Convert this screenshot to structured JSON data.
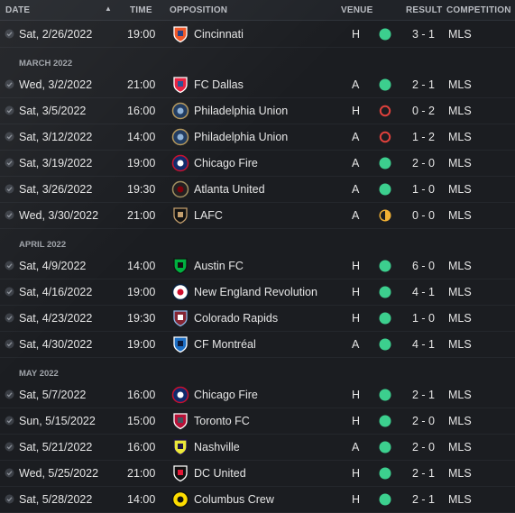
{
  "columns": {
    "date": "DATE",
    "time": "TIME",
    "opposition": "OPPOSITION",
    "venue": "VENUE",
    "result": "RESULT",
    "competition": "COMPETITION",
    "sort_indicator": "▲"
  },
  "colors": {
    "win": "#3ccf8e",
    "loss": "#e0413c",
    "draw": "#f2b134"
  },
  "rows": [
    {
      "type": "match",
      "date": "Sat, 2/26/2022",
      "time": "19:00",
      "opponent": "Cincinnati",
      "crest_icon": "cincinnati-crest-icon",
      "venue": "H",
      "outcome": "win",
      "result": "3 - 1",
      "competition": "MLS"
    },
    {
      "type": "section",
      "label": "MARCH 2022"
    },
    {
      "type": "match",
      "date": "Wed, 3/2/2022",
      "time": "21:00",
      "opponent": "FC Dallas",
      "crest_icon": "fc-dallas-crest-icon",
      "venue": "A",
      "outcome": "win",
      "result": "2 - 1",
      "competition": "MLS"
    },
    {
      "type": "match",
      "date": "Sat, 3/5/2022",
      "time": "16:00",
      "opponent": "Philadelphia Union",
      "crest_icon": "philadelphia-union-crest-icon",
      "venue": "H",
      "outcome": "loss",
      "result": "0 - 2",
      "competition": "MLS"
    },
    {
      "type": "match",
      "date": "Sat, 3/12/2022",
      "time": "14:00",
      "opponent": "Philadelphia Union",
      "crest_icon": "philadelphia-union-crest-icon",
      "venue": "A",
      "outcome": "loss",
      "result": "1 - 2",
      "competition": "MLS"
    },
    {
      "type": "match",
      "date": "Sat, 3/19/2022",
      "time": "19:00",
      "opponent": "Chicago Fire",
      "crest_icon": "chicago-fire-crest-icon",
      "venue": "A",
      "outcome": "win",
      "result": "2 - 0",
      "competition": "MLS"
    },
    {
      "type": "match",
      "date": "Sat, 3/26/2022",
      "time": "19:30",
      "opponent": "Atlanta United",
      "crest_icon": "atlanta-united-crest-icon",
      "venue": "A",
      "outcome": "win",
      "result": "1 - 0",
      "competition": "MLS"
    },
    {
      "type": "match",
      "date": "Wed, 3/30/2022",
      "time": "21:00",
      "opponent": "LAFC",
      "crest_icon": "lafc-crest-icon",
      "venue": "A",
      "outcome": "draw",
      "result": "0 - 0",
      "competition": "MLS"
    },
    {
      "type": "section",
      "label": "APRIL 2022"
    },
    {
      "type": "match",
      "date": "Sat, 4/9/2022",
      "time": "14:00",
      "opponent": "Austin FC",
      "crest_icon": "austin-fc-crest-icon",
      "venue": "H",
      "outcome": "win",
      "result": "6 - 0",
      "competition": "MLS"
    },
    {
      "type": "match",
      "date": "Sat, 4/16/2022",
      "time": "19:00",
      "opponent": "New England Revolution",
      "crest_icon": "new-england-revolution-crest-icon",
      "venue": "H",
      "outcome": "win",
      "result": "4 - 1",
      "competition": "MLS"
    },
    {
      "type": "match",
      "date": "Sat, 4/23/2022",
      "time": "19:30",
      "opponent": "Colorado Rapids",
      "crest_icon": "colorado-rapids-crest-icon",
      "venue": "H",
      "outcome": "win",
      "result": "1 - 0",
      "competition": "MLS"
    },
    {
      "type": "match",
      "date": "Sat, 4/30/2022",
      "time": "19:00",
      "opponent": "CF Montréal",
      "crest_icon": "cf-montreal-crest-icon",
      "venue": "A",
      "outcome": "win",
      "result": "4 - 1",
      "competition": "MLS"
    },
    {
      "type": "section",
      "label": "MAY 2022"
    },
    {
      "type": "match",
      "date": "Sat, 5/7/2022",
      "time": "16:00",
      "opponent": "Chicago Fire",
      "crest_icon": "chicago-fire-crest-icon",
      "venue": "H",
      "outcome": "win",
      "result": "2 - 1",
      "competition": "MLS"
    },
    {
      "type": "match",
      "date": "Sun, 5/15/2022",
      "time": "15:00",
      "opponent": "Toronto FC",
      "crest_icon": "toronto-fc-crest-icon",
      "venue": "H",
      "outcome": "win",
      "result": "2 - 0",
      "competition": "MLS"
    },
    {
      "type": "match",
      "date": "Sat, 5/21/2022",
      "time": "16:00",
      "opponent": "Nashville",
      "crest_icon": "nashville-crest-icon",
      "venue": "A",
      "outcome": "win",
      "result": "2 - 0",
      "competition": "MLS"
    },
    {
      "type": "match",
      "date": "Wed, 5/25/2022",
      "time": "21:00",
      "opponent": "DC United",
      "crest_icon": "dc-united-crest-icon",
      "venue": "H",
      "outcome": "win",
      "result": "2 - 1",
      "competition": "MLS"
    },
    {
      "type": "match",
      "date": "Sat, 5/28/2022",
      "time": "14:00",
      "opponent": "Columbus Crew",
      "crest_icon": "columbus-crew-crest-icon",
      "venue": "H",
      "outcome": "win",
      "result": "2 - 1",
      "competition": "MLS"
    }
  ]
}
